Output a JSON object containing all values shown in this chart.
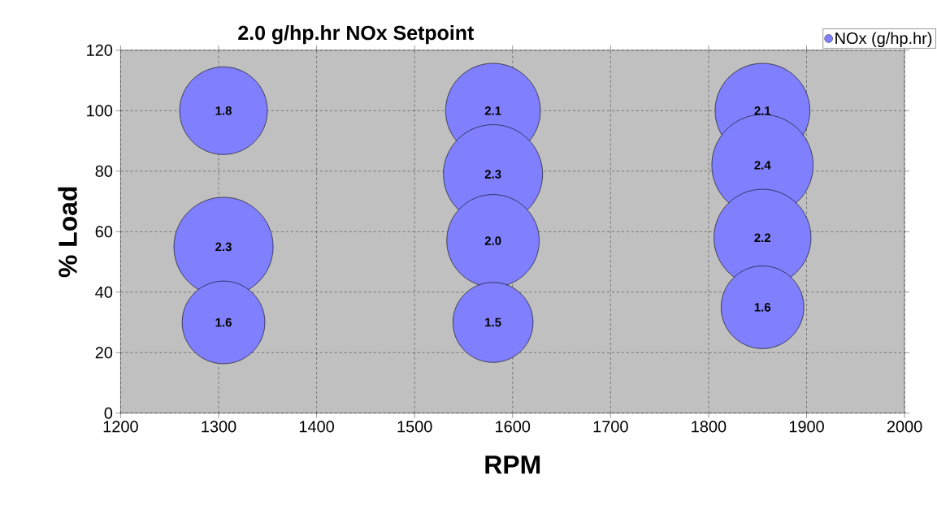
{
  "chart_data": {
    "type": "bubble",
    "title": "2.0 g/hp.hr NOx Setpoint",
    "xlabel": "RPM",
    "ylabel": "% Load",
    "xlim": [
      1200,
      2000
    ],
    "xticks": [
      1200,
      1300,
      1400,
      1500,
      1600,
      1700,
      1800,
      1900,
      2000
    ],
    "ylim": [
      0,
      120
    ],
    "yticks": [
      0,
      20,
      40,
      60,
      80,
      100,
      120
    ],
    "grid": true,
    "legend": "top right",
    "series": [
      {
        "name": "NOx (g/hp.hr)",
        "color": "#8080ff",
        "x": [
          1305,
          1305,
          1305,
          1580,
          1580,
          1580,
          1580,
          1855,
          1855,
          1855,
          1855
        ],
        "values": [
          100,
          55,
          30,
          100,
          79,
          57,
          30,
          100,
          82,
          58,
          35
        ],
        "sizes": [
          1.8,
          2.3,
          1.6,
          2.1,
          2.3,
          2.0,
          1.5,
          2.1,
          2.4,
          2.2,
          1.6
        ],
        "value_labels": [
          "1.8",
          "2.3",
          "1.6",
          "2.1",
          "2.3",
          "2.0",
          "1.5",
          "2.1",
          "2.4",
          "2.2",
          "1.6"
        ]
      }
    ]
  }
}
